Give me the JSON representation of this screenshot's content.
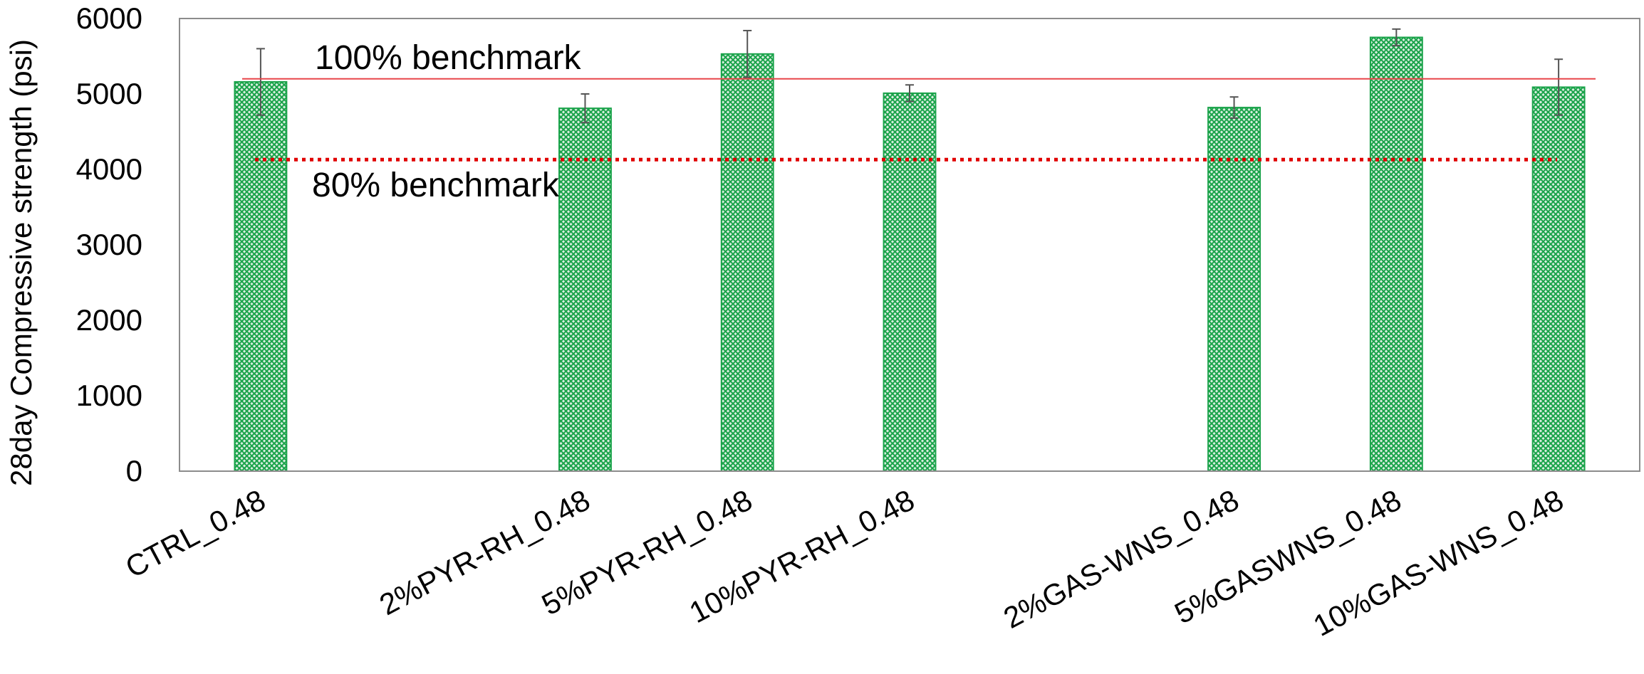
{
  "chart_data": {
    "type": "bar",
    "title": "",
    "xlabel": "",
    "ylabel": "28day Compressive strength (psi)",
    "ylim": [
      0,
      6000
    ],
    "yticks": [
      0,
      1000,
      2000,
      3000,
      4000,
      5000,
      6000
    ],
    "grid": false,
    "legend": "none",
    "categories": [
      "CTRL_0.48",
      "",
      "2%PYR-RH_0.48",
      "5%PYR-RH_0.48",
      "10%PYR-RH_0.48",
      "",
      "2%GAS-WNS_0.48",
      "5%GASWNS_0.48",
      "10%GAS-WNS_0.48"
    ],
    "series": [
      {
        "values": [
          5160,
          null,
          4810,
          5530,
          5010,
          null,
          4820,
          5750,
          5090
        ],
        "error": [
          440,
          null,
          190,
          310,
          110,
          null,
          140,
          110,
          370
        ],
        "color": "#1aa34a",
        "pattern": "crosshatch"
      }
    ],
    "reference_lines": [
      {
        "label": "100% benchmark",
        "value": 5200,
        "style": "solid",
        "color": "#e8464a"
      },
      {
        "label": "80% benchmark",
        "value": 4130,
        "style": "dotted",
        "color": "#e00000"
      }
    ]
  }
}
